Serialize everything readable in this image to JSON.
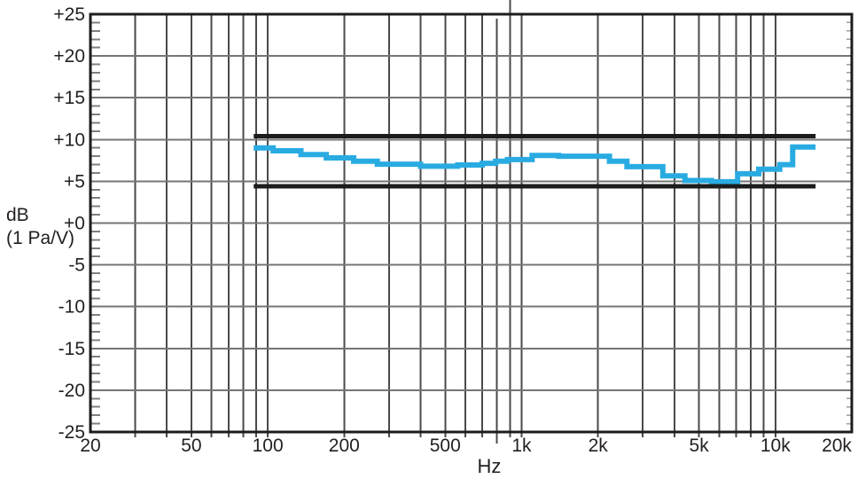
{
  "figure": {
    "background": "#ffffff",
    "accent_color": "#29abe2",
    "limit_color": "#1c1c1c",
    "grid_vertical_color": "#4a4a4a",
    "grid_horizontal_color": "#757575",
    "text_color": "#231f20"
  },
  "chart_data": {
    "type": "line",
    "subtype": "staircase-frequency-response",
    "title": "",
    "xlabel": "Hz",
    "ylabel": "dB (1 Pa/V)",
    "ylabel_line1": "dB",
    "ylabel_line2": "(1 Pa/V)",
    "x_scale": "log",
    "xlim": [
      20,
      20000
    ],
    "ylim": [
      -25,
      25
    ],
    "grid": true,
    "y_major_step": 5,
    "y_minor_step": 1,
    "x_ticks": [
      {
        "f": 20,
        "label": "20"
      },
      {
        "f": 50,
        "label": "50"
      },
      {
        "f": 100,
        "label": "100"
      },
      {
        "f": 200,
        "label": "200"
      },
      {
        "f": 500,
        "label": "500"
      },
      {
        "f": 1000,
        "label": "1k"
      },
      {
        "f": 2000,
        "label": "2k"
      },
      {
        "f": 5000,
        "label": "5k"
      },
      {
        "f": 10000,
        "label": "10k"
      },
      {
        "f": 20000,
        "label": "20k"
      }
    ],
    "y_ticks": [
      {
        "v": 25,
        "label": "+25"
      },
      {
        "v": 20,
        "label": "+20"
      },
      {
        "v": 15,
        "label": "+15"
      },
      {
        "v": 10,
        "label": "+10"
      },
      {
        "v": 5,
        "label": "+5"
      },
      {
        "v": 0,
        "label": "+0"
      },
      {
        "v": -5,
        "label": "-5"
      },
      {
        "v": -10,
        "label": "-10"
      },
      {
        "v": -15,
        "label": "-15"
      },
      {
        "v": -20,
        "label": "-20"
      },
      {
        "v": -25,
        "label": "-25"
      }
    ],
    "series": [
      {
        "name": "frequency-response",
        "type": "staircase",
        "color": "#29abe2",
        "width": 6,
        "points": [
          [
            88,
            9.0
          ],
          [
            105,
            8.65
          ],
          [
            135,
            8.2
          ],
          [
            170,
            7.8
          ],
          [
            218,
            7.4
          ],
          [
            270,
            7.05
          ],
          [
            400,
            6.8
          ],
          [
            560,
            6.95
          ],
          [
            700,
            7.15
          ],
          [
            790,
            7.4
          ],
          [
            880,
            7.6
          ],
          [
            1100,
            8.1
          ],
          [
            1400,
            8.0
          ],
          [
            2220,
            7.4
          ],
          [
            2600,
            6.75
          ],
          [
            3600,
            5.65
          ],
          [
            4400,
            5.1
          ],
          [
            5600,
            4.95
          ],
          [
            7100,
            5.9
          ],
          [
            8600,
            6.45
          ],
          [
            10400,
            7.0
          ],
          [
            11700,
            9.1
          ]
        ],
        "end_freq": 14400
      },
      {
        "name": "upper-tolerance-limit",
        "type": "hline",
        "color": "#1c1c1c",
        "width": 5,
        "value": 10.4,
        "from": 88,
        "to": 14400
      },
      {
        "name": "lower-tolerance-limit",
        "type": "hline",
        "color": "#1c1c1c",
        "width": 5,
        "value": 4.4,
        "from": 88,
        "to": 14400
      }
    ]
  }
}
